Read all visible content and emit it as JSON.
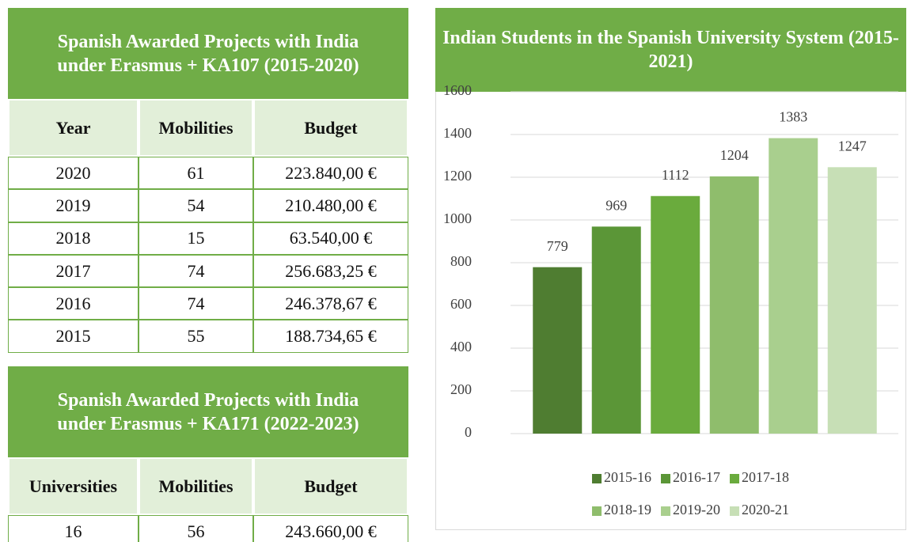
{
  "table1": {
    "title": "Spanish Awarded Projects with India under Erasmus + KA107 (2015-2020)",
    "columns": [
      "Year",
      "Mobilities",
      "Budget"
    ],
    "rows": [
      [
        "2020",
        "61",
        "223.840,00 €"
      ],
      [
        "2019",
        "54",
        "210.480,00 €"
      ],
      [
        "2018",
        "15",
        "63.540,00 €"
      ],
      [
        "2017",
        "74",
        "256.683,25 €"
      ],
      [
        "2016",
        "74",
        "246.378,67 €"
      ],
      [
        "2015",
        "55",
        "188.734,65 €"
      ]
    ]
  },
  "table2": {
    "title": "Spanish Awarded Projects with India under Erasmus + KA171 (2022-2023)",
    "columns": [
      "Universities",
      "Mobilities",
      "Budget"
    ],
    "rows": [
      [
        "16",
        "56",
        "243.660,00 €"
      ]
    ]
  },
  "chart_data": {
    "type": "bar",
    "title": "Indian Students in the Spanish University System (2015-2021)",
    "categories": [
      "2015-16",
      "2016-17",
      "2017-18",
      "2018-19",
      "2019-20",
      "2020-21"
    ],
    "values": [
      779,
      969,
      1112,
      1204,
      1383,
      1247
    ],
    "colors": [
      "#4f7d31",
      "#5b9637",
      "#6aab3d",
      "#8fbd6c",
      "#a9cf8e",
      "#c7dfb6"
    ],
    "ylim": [
      0,
      1600
    ],
    "yticks": [
      0,
      200,
      400,
      600,
      800,
      1000,
      1200,
      1400,
      1600
    ],
    "grid": true,
    "legend": "bottom"
  }
}
